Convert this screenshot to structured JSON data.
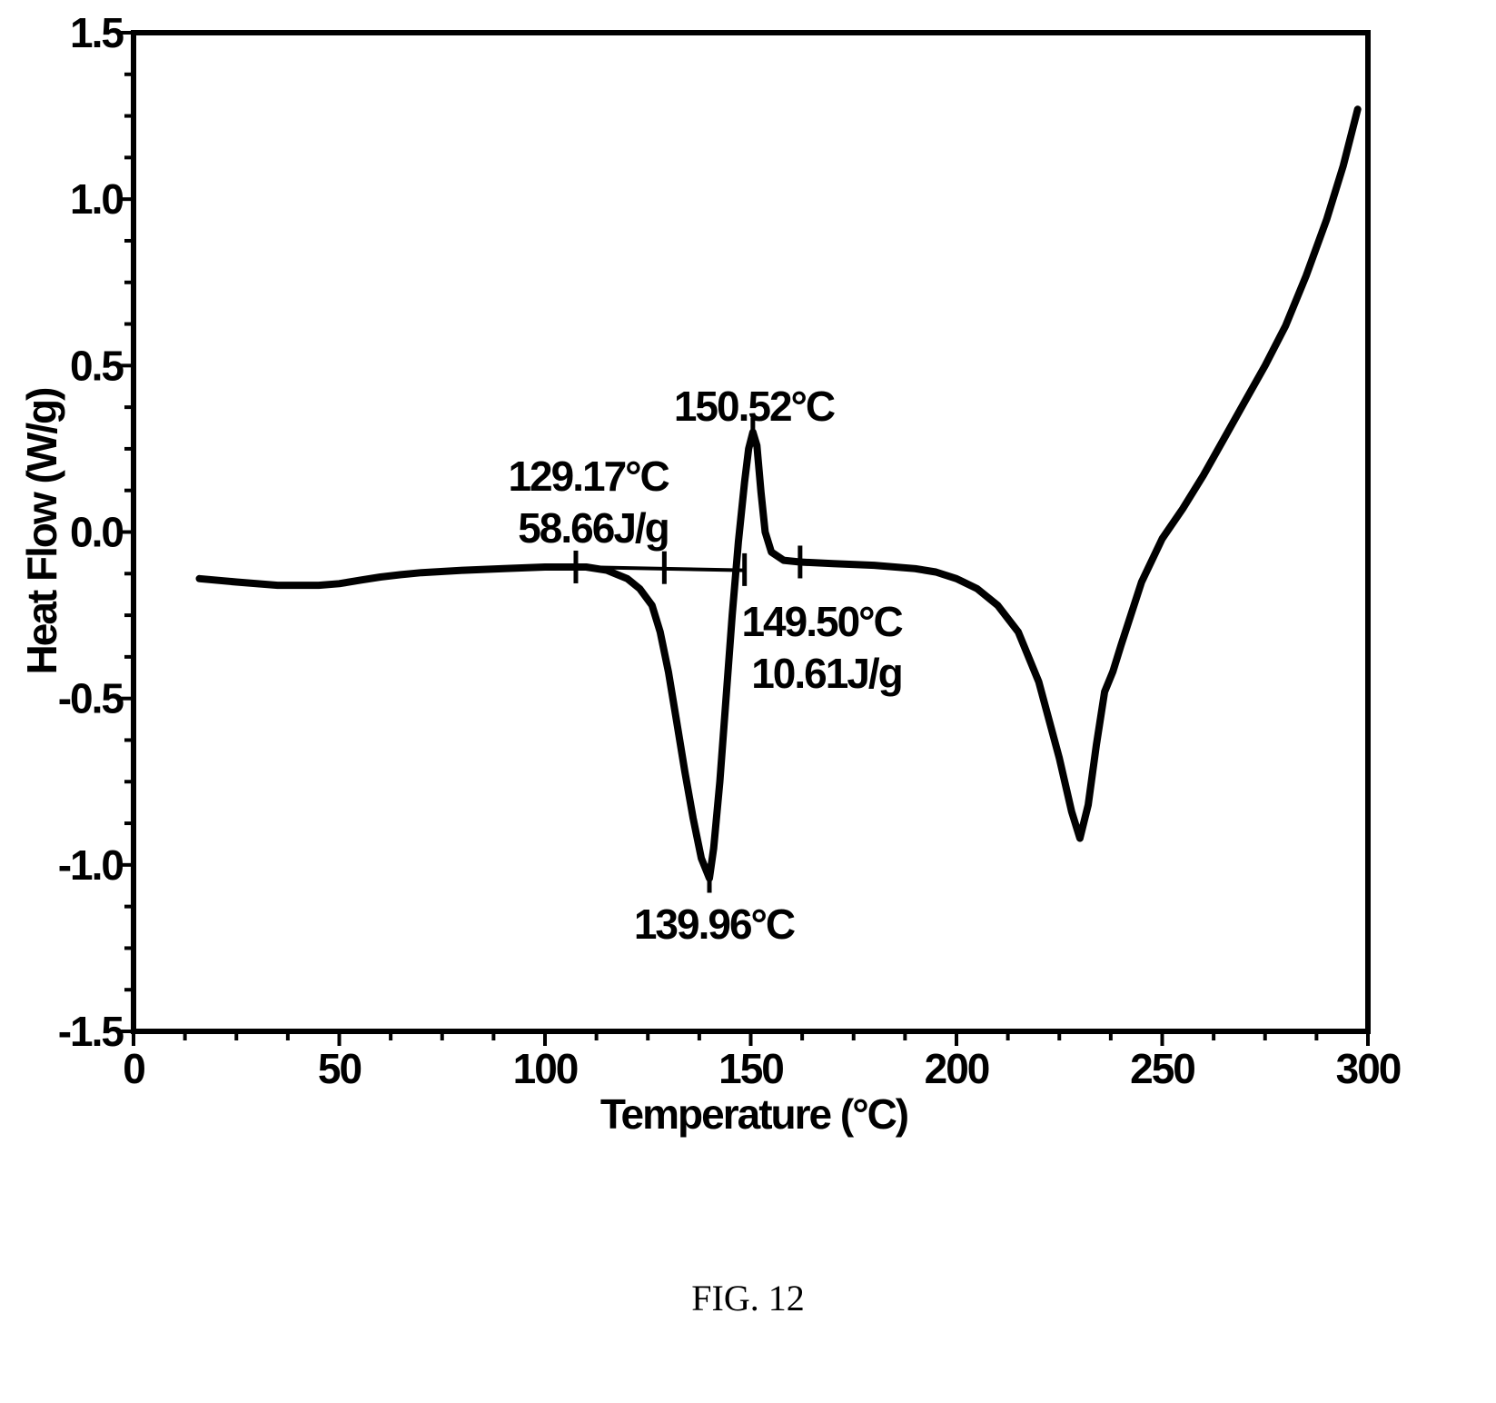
{
  "chart_data": {
    "type": "line",
    "title": "",
    "xlabel": "Temperature (°C)",
    "ylabel": "Heat Flow (W/g)",
    "xlim": [
      0,
      300
    ],
    "ylim": [
      -1.5,
      1.5
    ],
    "x_ticks": [
      0,
      50,
      100,
      150,
      200,
      250,
      300
    ],
    "x_tick_labels": [
      "0",
      "50",
      "100",
      "150",
      "200",
      "250",
      "300"
    ],
    "y_ticks": [
      1.5,
      1.0,
      0.5,
      0.0,
      -0.5,
      -1.0,
      -1.5
    ],
    "y_tick_labels": [
      "1.5",
      "1.0",
      "0.5",
      "0.0",
      "-0.5",
      "-1.0",
      "-1.5"
    ],
    "grid": false,
    "series": [
      {
        "x": [
          16,
          25,
          35,
          45,
          50,
          55,
          60,
          65,
          70,
          80,
          90,
          100,
          110,
          115,
          120,
          123,
          126,
          128,
          130,
          132,
          134,
          136,
          138,
          139.96,
          141,
          142.5,
          144,
          145.5,
          147,
          148.5,
          149.5,
          150.52,
          151.5,
          152.5,
          153.5,
          155,
          158,
          162,
          170,
          180,
          190,
          195,
          200,
          205,
          210,
          215,
          220,
          225,
          228,
          230,
          232,
          234,
          236,
          238,
          240,
          245,
          250,
          255,
          260,
          265,
          270,
          275,
          280,
          285,
          290,
          294,
          297.5
        ],
        "y": [
          -0.14,
          -0.15,
          -0.16,
          -0.16,
          -0.155,
          -0.145,
          -0.135,
          -0.128,
          -0.122,
          -0.115,
          -0.11,
          -0.105,
          -0.105,
          -0.115,
          -0.14,
          -0.17,
          -0.22,
          -0.3,
          -0.42,
          -0.57,
          -0.72,
          -0.86,
          -0.98,
          -1.04,
          -0.95,
          -0.75,
          -0.5,
          -0.25,
          -0.03,
          0.15,
          0.25,
          0.3,
          0.26,
          0.12,
          0.0,
          -0.06,
          -0.085,
          -0.09,
          -0.095,
          -0.1,
          -0.11,
          -0.12,
          -0.14,
          -0.17,
          -0.22,
          -0.3,
          -0.45,
          -0.68,
          -0.84,
          -0.92,
          -0.82,
          -0.64,
          -0.48,
          -0.42,
          -0.34,
          -0.15,
          -0.02,
          0.07,
          0.17,
          0.28,
          0.39,
          0.5,
          0.62,
          0.77,
          0.94,
          1.1,
          1.27
        ]
      }
    ],
    "annotations": [
      {
        "lines": [
          "150.52°C"
        ],
        "x": 150.52
      },
      {
        "lines": [
          "129.17°C",
          "58.66J/g"
        ],
        "x": 129.17
      },
      {
        "lines": [
          "149.50°C",
          "10.61J/g"
        ],
        "x": 149.5
      },
      {
        "lines": [
          "139.96°C"
        ],
        "x": 139.96
      }
    ],
    "baseline_markers": [
      107.5,
      129,
      148.5,
      162
    ]
  },
  "caption": "FIG. 12"
}
